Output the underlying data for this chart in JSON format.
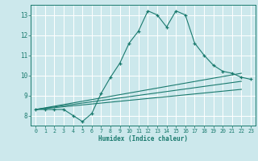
{
  "title": "",
  "xlabel": "Humidex (Indice chaleur)",
  "bg_color": "#cce8ec",
  "grid_color": "#ffffff",
  "line_color": "#1a7a6e",
  "xlim": [
    -0.5,
    23.5
  ],
  "ylim": [
    7.5,
    13.5
  ],
  "xticks": [
    0,
    1,
    2,
    3,
    4,
    5,
    6,
    7,
    8,
    9,
    10,
    11,
    12,
    13,
    14,
    15,
    16,
    17,
    18,
    19,
    20,
    21,
    22,
    23
  ],
  "yticks": [
    8,
    9,
    10,
    11,
    12,
    13
  ],
  "main_x": [
    0,
    1,
    2,
    3,
    4,
    5,
    6,
    7,
    8,
    9,
    10,
    11,
    12,
    13,
    14,
    15,
    16,
    17,
    18,
    19,
    20,
    21,
    22,
    23
  ],
  "main_y": [
    8.3,
    8.3,
    8.3,
    8.3,
    8.0,
    7.7,
    8.1,
    9.1,
    9.9,
    10.6,
    11.6,
    12.2,
    13.2,
    13.0,
    12.4,
    13.2,
    13.0,
    11.6,
    11.0,
    10.5,
    10.2,
    10.1,
    9.9,
    9.8
  ],
  "line2_x": [
    0,
    22
  ],
  "line2_y": [
    8.3,
    10.1
  ],
  "line3_x": [
    0,
    22
  ],
  "line3_y": [
    8.3,
    9.7
  ],
  "line4_x": [
    0,
    22
  ],
  "line4_y": [
    8.3,
    9.3
  ]
}
